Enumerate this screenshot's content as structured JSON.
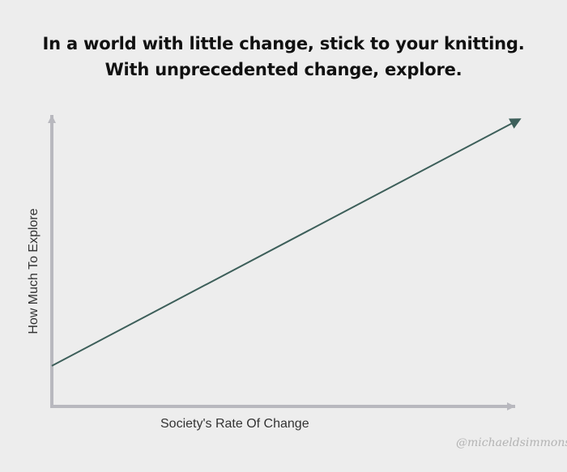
{
  "page": {
    "title_lines": [
      "In a world with little change, stick to your knitting.",
      "With unprecedented change,  explore."
    ],
    "watermark": "@michaeldsimmons"
  },
  "chart_data": {
    "type": "line",
    "title": "In a world with little change, stick to your knitting. With unprecedented change,  explore.",
    "xlabel": "Society's Rate Of Change",
    "ylabel": "How Much To Explore",
    "xlim": [
      0,
      1
    ],
    "ylim": [
      0,
      1
    ],
    "series": [
      {
        "x": [
          0,
          1
        ],
        "y": [
          0.14,
          0.99
        ],
        "color": "#3d5f5a"
      }
    ],
    "axis_color": "#b8b8be",
    "grid": false,
    "legend": "none",
    "tick_labels": false
  }
}
